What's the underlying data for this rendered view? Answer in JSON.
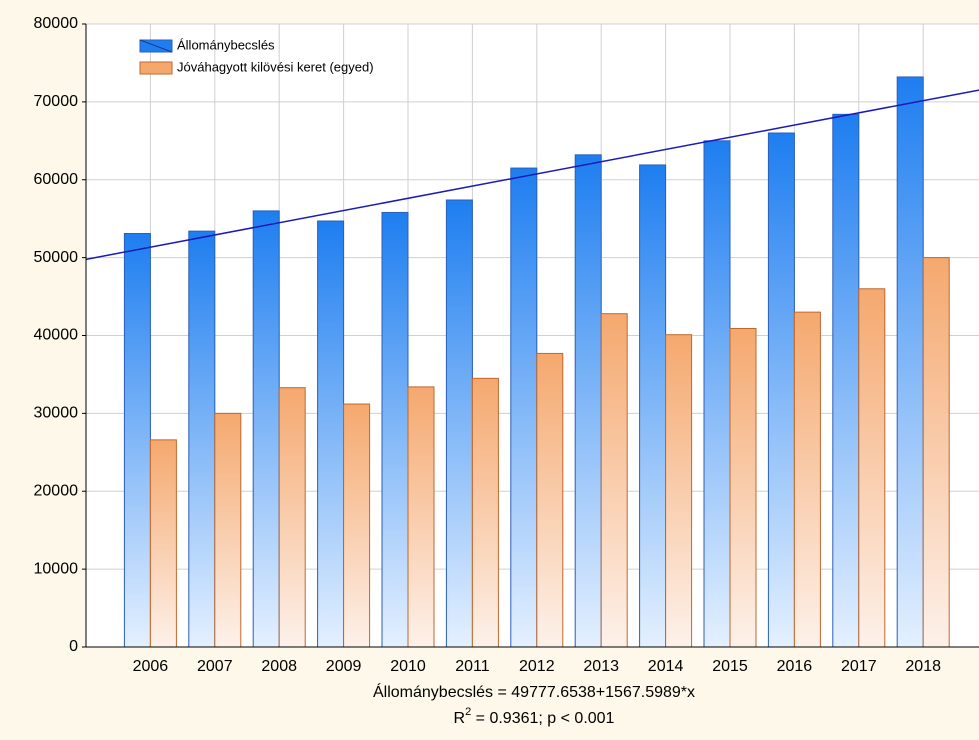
{
  "chart_data": {
    "type": "bar",
    "categories": [
      "2006",
      "2007",
      "2008",
      "2009",
      "2010",
      "2011",
      "2012",
      "2013",
      "2014",
      "2015",
      "2016",
      "2017",
      "2018"
    ],
    "series": [
      {
        "name": "Állománybecslés",
        "color": "#1e7ef0",
        "values": [
          53100,
          53400,
          56000,
          54700,
          55800,
          57400,
          61500,
          63200,
          61900,
          65000,
          66000,
          68400,
          73200
        ]
      },
      {
        "name": "Jóváhagyott kilövési keret (egyed)",
        "color": "#f5a86e",
        "values": [
          26600,
          30000,
          33300,
          31200,
          33400,
          34500,
          37700,
          42800,
          40100,
          40900,
          43000,
          46000,
          50000
        ]
      }
    ],
    "ylim": [
      0,
      80000
    ],
    "yticks": [
      0,
      10000,
      20000,
      30000,
      40000,
      50000,
      60000,
      70000,
      80000
    ],
    "grid": true,
    "legend": "upper left",
    "fit": {
      "intercept": 49777.6538,
      "slope": 1567.5989,
      "color": "#1a1ab8",
      "label": "Állománybecslés = 49777.6538+1567.5989*x"
    },
    "r2_label": {
      "base": "R",
      "sup": "2",
      "rest": " = 0.9361; p < 0.001"
    }
  }
}
